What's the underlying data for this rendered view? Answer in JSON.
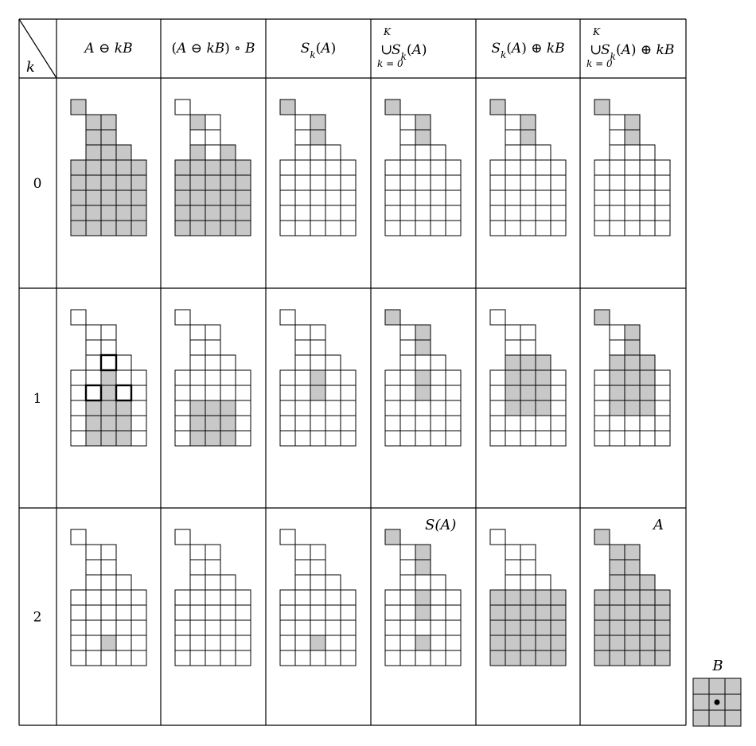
{
  "corner_label": "k",
  "columns": [
    {
      "id": "erosion",
      "parts": [
        {
          "t": "A",
          "i": true
        },
        {
          "t": " ⊖ ",
          "i": false
        },
        {
          "t": "kB",
          "i": true
        }
      ]
    },
    {
      "id": "opening",
      "parts": [
        {
          "t": "(",
          "i": false
        },
        {
          "t": "A",
          "i": true
        },
        {
          "t": " ⊖ ",
          "i": false
        },
        {
          "t": "kB",
          "i": true
        },
        {
          "t": ") ∘ ",
          "i": false
        },
        {
          "t": "B",
          "i": true
        }
      ]
    },
    {
      "id": "skeleton-subset",
      "parts": [
        {
          "t": "S",
          "i": true
        },
        {
          "t": "k",
          "i": true,
          "sub": true
        },
        {
          "t": "(",
          "i": false
        },
        {
          "t": "A",
          "i": true
        },
        {
          "t": ")",
          "i": false
        }
      ]
    },
    {
      "id": "union-skeleton",
      "union": true,
      "top": "K",
      "bottom": "k = 0",
      "op": "∪",
      "parts": [
        {
          "t": "S",
          "i": true
        },
        {
          "t": "k",
          "i": true,
          "sub": true
        },
        {
          "t": "(",
          "i": false
        },
        {
          "t": "A",
          "i": true
        },
        {
          "t": ")",
          "i": false
        }
      ]
    },
    {
      "id": "dilation",
      "parts": [
        {
          "t": "S",
          "i": true
        },
        {
          "t": "k",
          "i": true,
          "sub": true
        },
        {
          "t": "(",
          "i": false
        },
        {
          "t": "A",
          "i": true
        },
        {
          "t": ") ⊕ ",
          "i": false
        },
        {
          "t": "kB",
          "i": true
        }
      ]
    },
    {
      "id": "union-dilation",
      "union": true,
      "top": "K",
      "bottom": "k = 0",
      "op": "∪",
      "parts": [
        {
          "t": "S",
          "i": true
        },
        {
          "t": "k",
          "i": true,
          "sub": true
        },
        {
          "t": "(",
          "i": false
        },
        {
          "t": "A",
          "i": true
        },
        {
          "t": ") ⊕ ",
          "i": false
        },
        {
          "t": "kB",
          "i": true
        }
      ]
    }
  ],
  "rows": [
    {
      "k": "0",
      "cells": [
        {
          "shaded": "ALL",
          "bold": []
        },
        {
          "shaded": "ALL",
          "bold": [],
          "unshade": [
            [
              0,
              0
            ],
            [
              1,
              2
            ],
            [
              2,
              1
            ],
            [
              2,
              2
            ],
            [
              3,
              2
            ]
          ]
        },
        {
          "shaded": [
            [
              0,
              0
            ],
            [
              1,
              2
            ],
            [
              1,
              3
            ],
            [
              2,
              2
            ],
            [
              2,
              3
            ]
          ]
        },
        {
          "shaded": [
            [
              0,
              0
            ],
            [
              1,
              2
            ],
            [
              1,
              3
            ],
            [
              2,
              2
            ],
            [
              2,
              3
            ]
          ]
        },
        {
          "shaded": [
            [
              0,
              0
            ],
            [
              1,
              2
            ],
            [
              1,
              3
            ],
            [
              2,
              2
            ],
            [
              2,
              3
            ]
          ]
        },
        {
          "shaded": [
            [
              0,
              0
            ],
            [
              1,
              2
            ],
            [
              1,
              3
            ],
            [
              2,
              2
            ],
            [
              2,
              3
            ]
          ]
        }
      ]
    },
    {
      "k": "1",
      "cells": [
        {
          "shaded": [
            [
              4,
              2
            ],
            [
              5,
              2
            ],
            [
              6,
              1
            ],
            [
              6,
              2
            ],
            [
              6,
              3
            ],
            [
              7,
              1
            ],
            [
              7,
              2
            ],
            [
              7,
              3
            ],
            [
              8,
              1
            ],
            [
              8,
              2
            ],
            [
              8,
              3
            ]
          ],
          "bold": [
            [
              3,
              2
            ],
            [
              5,
              1
            ],
            [
              5,
              3
            ]
          ]
        },
        {
          "shaded": [
            [
              6,
              1
            ],
            [
              6,
              2
            ],
            [
              6,
              3
            ],
            [
              7,
              1
            ],
            [
              7,
              2
            ],
            [
              7,
              3
            ],
            [
              8,
              1
            ],
            [
              8,
              2
            ],
            [
              8,
              3
            ]
          ]
        },
        {
          "shaded": [
            [
              4,
              2
            ],
            [
              5,
              2
            ]
          ]
        },
        {
          "shaded": [
            [
              0,
              0
            ],
            [
              1,
              2
            ],
            [
              1,
              3
            ],
            [
              2,
              2
            ],
            [
              2,
              3
            ],
            [
              4,
              2
            ],
            [
              5,
              2
            ]
          ]
        },
        {
          "shaded": [
            [
              3,
              1
            ],
            [
              3,
              2
            ],
            [
              3,
              3
            ],
            [
              4,
              1
            ],
            [
              4,
              2
            ],
            [
              4,
              3
            ],
            [
              5,
              1
            ],
            [
              5,
              2
            ],
            [
              5,
              3
            ],
            [
              6,
              1
            ],
            [
              6,
              2
            ],
            [
              6,
              3
            ]
          ]
        },
        {
          "shaded": [
            [
              0,
              0
            ],
            [
              1,
              2
            ],
            [
              1,
              3
            ],
            [
              2,
              2
            ],
            [
              2,
              3
            ],
            [
              3,
              1
            ],
            [
              3,
              2
            ],
            [
              3,
              3
            ],
            [
              4,
              1
            ],
            [
              4,
              2
            ],
            [
              4,
              3
            ],
            [
              5,
              1
            ],
            [
              5,
              2
            ],
            [
              5,
              3
            ],
            [
              6,
              1
            ],
            [
              6,
              2
            ],
            [
              6,
              3
            ]
          ]
        }
      ]
    },
    {
      "k": "2",
      "cells": [
        {
          "shaded": [
            [
              7,
              2
            ]
          ]
        },
        {
          "shaded": []
        },
        {
          "shaded": [
            [
              7,
              2
            ]
          ]
        },
        {
          "shaded": [
            [
              0,
              0
            ],
            [
              1,
              2
            ],
            [
              1,
              3
            ],
            [
              2,
              2
            ],
            [
              2,
              3
            ],
            [
              4,
              2
            ],
            [
              5,
              2
            ],
            [
              7,
              2
            ]
          ],
          "label": "S(A)"
        },
        {
          "shaded": "BOTTOM"
        },
        {
          "shaded": "ALL",
          "label": "A"
        }
      ]
    }
  ],
  "structuring_element": {
    "label": "B",
    "origin": [
      1,
      1
    ]
  },
  "colors": {
    "shade": "#c8c8c8",
    "line": "#000000",
    "background": "#ffffff"
  }
}
